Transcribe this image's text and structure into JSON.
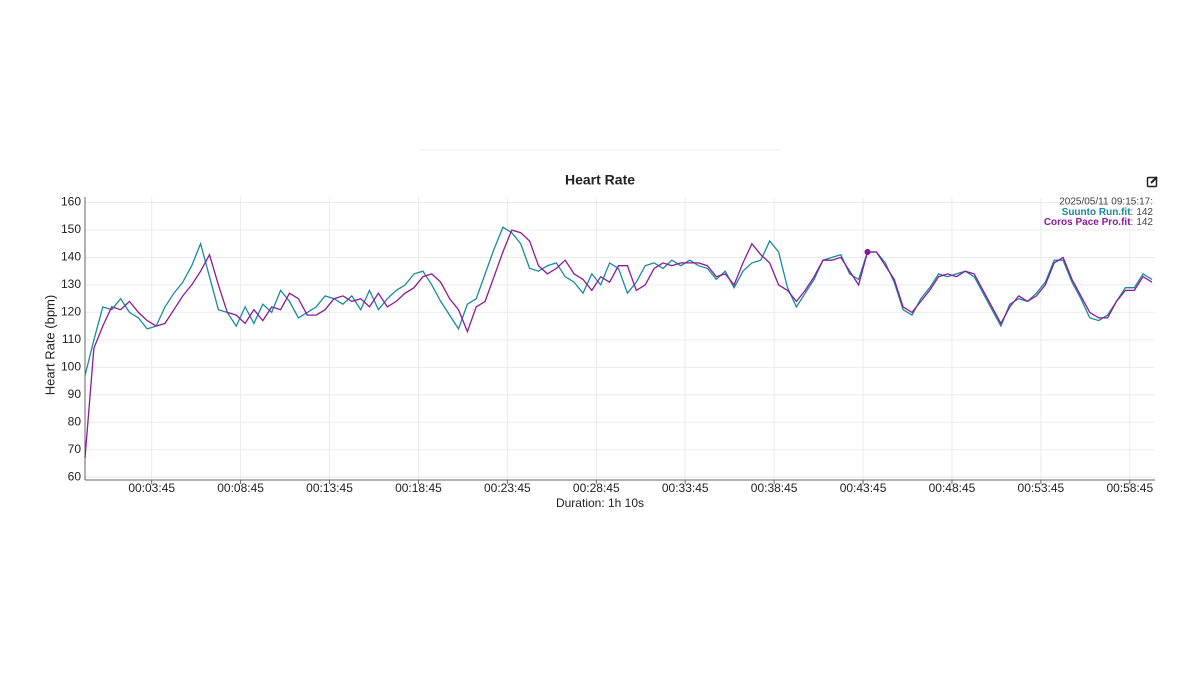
{
  "chart_data": {
    "type": "line",
    "title": "Heart Rate",
    "xlabel": "Duration: 1h 10s",
    "ylabel": "Heart Rate (bpm)",
    "xlim": [
      0,
      3610
    ],
    "ylim": [
      59,
      162
    ],
    "yticks": [
      60,
      70,
      80,
      90,
      100,
      110,
      120,
      130,
      140,
      150,
      160
    ],
    "xticks": [
      {
        "value": 225,
        "label": "00:03:45"
      },
      {
        "value": 525,
        "label": "00:08:45"
      },
      {
        "value": 825,
        "label": "00:13:45"
      },
      {
        "value": 1125,
        "label": "00:18:45"
      },
      {
        "value": 1425,
        "label": "00:23:45"
      },
      {
        "value": 1725,
        "label": "00:28:45"
      },
      {
        "value": 2025,
        "label": "00:33:45"
      },
      {
        "value": 2325,
        "label": "00:38:45"
      },
      {
        "value": 2625,
        "label": "00:43:45"
      },
      {
        "value": 2925,
        "label": "00:48:45"
      },
      {
        "value": 3225,
        "label": "00:53:45"
      },
      {
        "value": 3525,
        "label": "00:58:45"
      }
    ],
    "grid": true,
    "x": [
      0,
      30,
      60,
      90,
      120,
      150,
      180,
      210,
      240,
      270,
      300,
      330,
      360,
      390,
      420,
      450,
      480,
      510,
      540,
      570,
      600,
      630,
      660,
      690,
      720,
      750,
      780,
      810,
      840,
      870,
      900,
      930,
      960,
      990,
      1020,
      1050,
      1080,
      1110,
      1140,
      1170,
      1200,
      1230,
      1260,
      1290,
      1320,
      1350,
      1380,
      1410,
      1440,
      1470,
      1500,
      1530,
      1560,
      1590,
      1620,
      1650,
      1680,
      1710,
      1740,
      1770,
      1800,
      1830,
      1860,
      1890,
      1920,
      1950,
      1980,
      2010,
      2040,
      2070,
      2100,
      2130,
      2160,
      2190,
      2220,
      2250,
      2280,
      2310,
      2340,
      2370,
      2400,
      2430,
      2460,
      2490,
      2520,
      2550,
      2580,
      2610,
      2640,
      2670,
      2700,
      2730,
      2760,
      2790,
      2820,
      2850,
      2880,
      2910,
      2940,
      2970,
      3000,
      3030,
      3060,
      3090,
      3120,
      3150,
      3180,
      3210,
      3240,
      3270,
      3300,
      3330,
      3360,
      3390,
      3420,
      3450,
      3480,
      3510,
      3540,
      3570,
      3600
    ],
    "series": [
      {
        "name": "Suunto Run.fit",
        "color": "#1a8a9a",
        "values": [
          97,
          110,
          122,
          121,
          125,
          120,
          118,
          114,
          115,
          122,
          127,
          131,
          137,
          145,
          133,
          121,
          120,
          115,
          122,
          116,
          123,
          120,
          128,
          124,
          118,
          120,
          122,
          126,
          125,
          123,
          126,
          121,
          128,
          121,
          125,
          128,
          130,
          134,
          135,
          130,
          124,
          119,
          114,
          123,
          125,
          134,
          143,
          151,
          149,
          145,
          136,
          135,
          137,
          138,
          133,
          131,
          127,
          134,
          130,
          138,
          136,
          127,
          131,
          137,
          138,
          136,
          139,
          137,
          139,
          137,
          136,
          132,
          135,
          129,
          135,
          138,
          139,
          146,
          142,
          129,
          122,
          127,
          132,
          139,
          140,
          141,
          134,
          132,
          142,
          142,
          138,
          131,
          121,
          119,
          125,
          129,
          134,
          133,
          134,
          135,
          133,
          127,
          121,
          115,
          123,
          125,
          124,
          127,
          131,
          139,
          139,
          131,
          125,
          118,
          117,
          119,
          124,
          129,
          129,
          134,
          132
        ]
      },
      {
        "name": "Coros Pace Pro.fit",
        "color": "#8a1a9a",
        "values": [
          67,
          107,
          115,
          122,
          121,
          124,
          120,
          117,
          115,
          116,
          121,
          126,
          130,
          135,
          141,
          130,
          120,
          119,
          116,
          121,
          117,
          122,
          121,
          127,
          125,
          119,
          119,
          121,
          125,
          126,
          124,
          125,
          122,
          127,
          122,
          124,
          127,
          129,
          133,
          134,
          131,
          125,
          121,
          113,
          122,
          124,
          133,
          142,
          150,
          149,
          146,
          137,
          134,
          136,
          139,
          134,
          132,
          128,
          133,
          131,
          137,
          137,
          128,
          130,
          136,
          138,
          137,
          138,
          138,
          138,
          137,
          133,
          134,
          130,
          138,
          145,
          141,
          138,
          130,
          128,
          124,
          128,
          133,
          139,
          139,
          140,
          135,
          130,
          142,
          142,
          137,
          132,
          122,
          120,
          124,
          128,
          133,
          134,
          133,
          135,
          134,
          128,
          122,
          116,
          122,
          126,
          124,
          126,
          130,
          138,
          140,
          132,
          126,
          120,
          118,
          118,
          124,
          128,
          128,
          133,
          131
        ]
      }
    ],
    "tooltip": {
      "time": "2025/05/11 09:15:17:",
      "separator": ":",
      "index": 88,
      "values": [
        142,
        142
      ]
    }
  }
}
